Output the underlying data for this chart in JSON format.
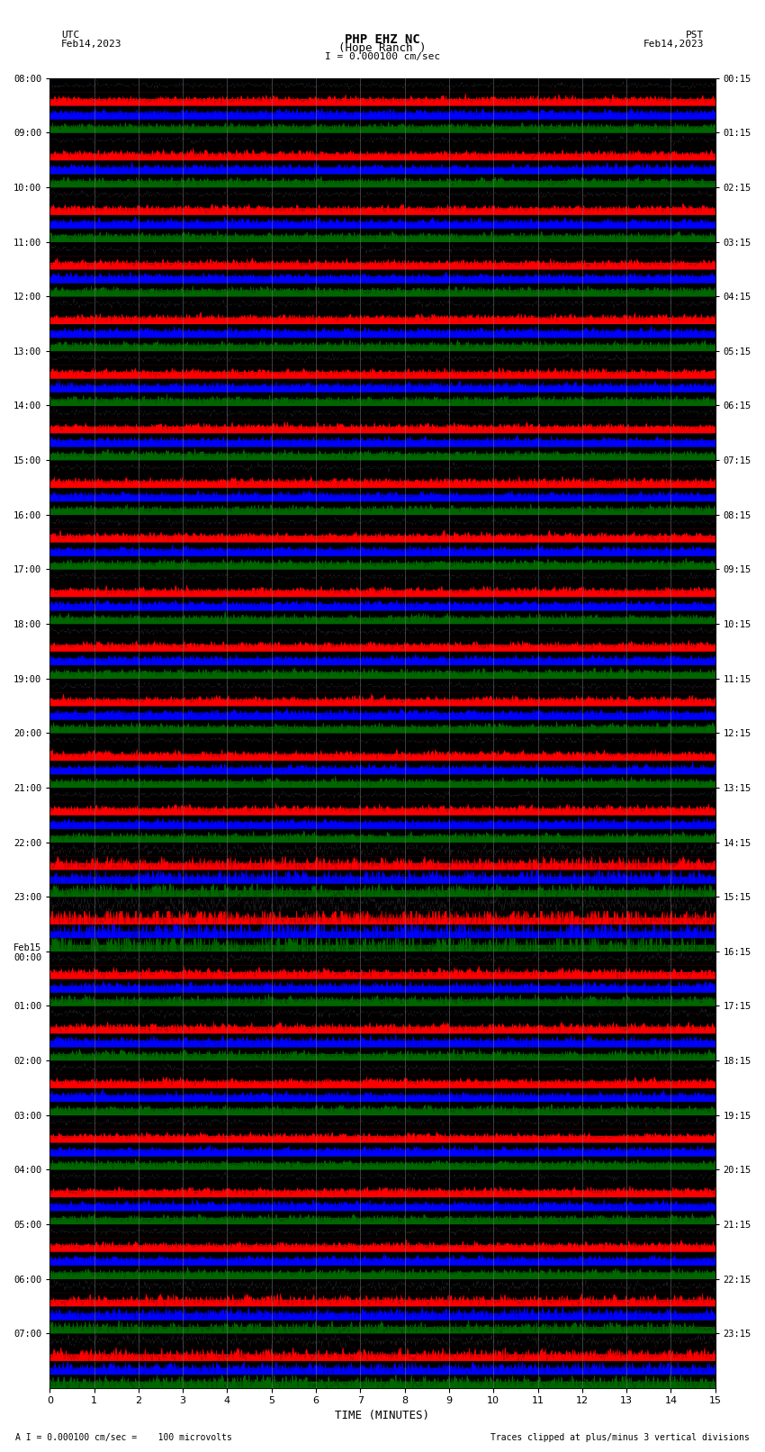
{
  "title_line1": "PHP EHZ NC",
  "title_line2": "(Hope Ranch )",
  "scale_text": "I = 0.000100 cm/sec",
  "utc_label": "UTC",
  "utc_date": "Feb14,2023",
  "pst_label": "PST",
  "pst_date": "Feb14,2023",
  "xlabel": "TIME (MINUTES)",
  "footer_left": "A I = 0.000100 cm/sec =    100 microvolts",
  "footer_right": "Traces clipped at plus/minus 3 vertical divisions",
  "xlim": [
    0,
    15
  ],
  "xticks": [
    0,
    1,
    2,
    3,
    4,
    5,
    6,
    7,
    8,
    9,
    10,
    11,
    12,
    13,
    14,
    15
  ],
  "bg_color": "#000000",
  "fig_bg": "#ffffff",
  "left_times": [
    "08:00",
    "09:00",
    "10:00",
    "11:00",
    "12:00",
    "13:00",
    "14:00",
    "15:00",
    "16:00",
    "17:00",
    "18:00",
    "19:00",
    "20:00",
    "21:00",
    "22:00",
    "23:00",
    "Feb15\n00:00",
    "01:00",
    "02:00",
    "03:00",
    "04:00",
    "05:00",
    "06:00",
    "07:00"
  ],
  "right_times": [
    "00:15",
    "01:15",
    "02:15",
    "03:15",
    "04:15",
    "05:15",
    "06:15",
    "07:15",
    "08:15",
    "09:15",
    "10:15",
    "11:15",
    "12:15",
    "13:15",
    "14:15",
    "15:15",
    "16:15",
    "17:15",
    "18:15",
    "19:15",
    "20:15",
    "21:15",
    "22:15",
    "23:15"
  ],
  "n_rows": 24,
  "traces_per_row": 4,
  "trace_colors_top_to_bottom": [
    "#000000",
    "#ff0000",
    "#0000ff",
    "#006600"
  ],
  "noise_amp": 0.35,
  "seed": 42,
  "event_rows": {
    "14": 2.0,
    "15": 3.5
  },
  "special_rows": {
    "22": 1.5,
    "23": 1.8,
    "16": 1.3,
    "17": 1.2
  }
}
